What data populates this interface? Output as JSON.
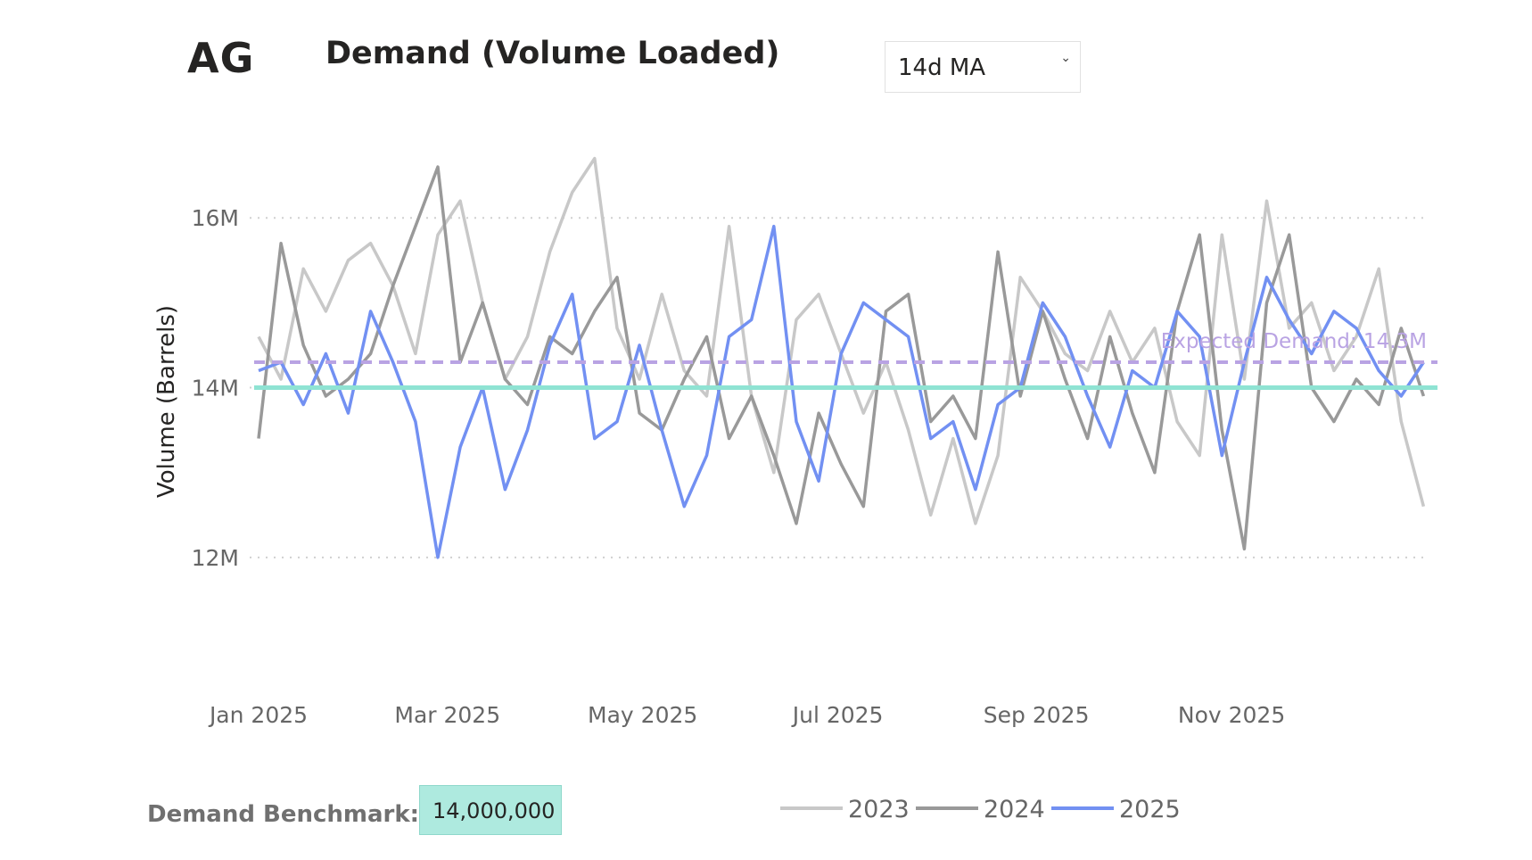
{
  "header": {
    "code": "AG",
    "title": "Demand (Volume Loaded)"
  },
  "dropdown": {
    "selected": "14d MA",
    "chevron_icon": "chevron-down-icon"
  },
  "benchmark": {
    "label": "Demand Benchmark:",
    "value": "14,000,000"
  },
  "chart_data": {
    "type": "line",
    "title": "Demand (Volume Loaded)",
    "ylabel": "Volume (Barrels)",
    "xlabel": "",
    "ylim": [
      11.0,
      17.2
    ],
    "yticks": [
      12,
      14,
      16
    ],
    "ytick_labels": [
      "12M",
      "14M",
      "16M"
    ],
    "xlim": [
      0,
      365
    ],
    "xticks": [
      0,
      59,
      120,
      181,
      243,
      304
    ],
    "xtick_labels": [
      "Jan 2025",
      "Mar 2025",
      "May 2025",
      "Jul 2025",
      "Sep 2025",
      "Nov 2025"
    ],
    "grid": "horizontal dotted",
    "legend_position": "bottom-center",
    "reference_lines": [
      {
        "name": "Expected Demand",
        "value": 14.3,
        "label": "Expected Demand: 14.3M",
        "style": "dashed",
        "color": "#b9a3e3"
      },
      {
        "name": "Demand Benchmark",
        "value": 14.0,
        "label": "",
        "style": "solid",
        "color": "#8fe3d3"
      }
    ],
    "x": [
      0,
      7,
      14,
      21,
      28,
      35,
      42,
      49,
      56,
      63,
      70,
      77,
      84,
      91,
      98,
      105,
      112,
      119,
      126,
      133,
      140,
      147,
      154,
      161,
      168,
      175,
      182,
      189,
      196,
      203,
      210,
      217,
      224,
      231,
      238,
      245,
      252,
      259,
      266,
      273,
      280,
      287,
      294,
      301,
      308,
      315,
      322,
      329,
      336,
      343,
      350,
      357,
      364
    ],
    "series": [
      {
        "name": "2023",
        "color": "#c8c8c8",
        "values": [
          14.6,
          14.1,
          15.4,
          14.9,
          15.5,
          15.7,
          15.2,
          14.4,
          15.8,
          16.2,
          15.0,
          14.1,
          14.6,
          15.6,
          16.3,
          16.7,
          14.7,
          14.1,
          15.1,
          14.2,
          13.9,
          15.9,
          13.9,
          13.0,
          14.8,
          15.1,
          14.4,
          13.7,
          14.3,
          13.5,
          12.5,
          13.4,
          12.4,
          13.2,
          15.3,
          14.9,
          14.4,
          14.2,
          14.9,
          14.3,
          14.7,
          13.6,
          13.2,
          15.8,
          14.1,
          16.2,
          14.7,
          15.0,
          14.2,
          14.6,
          15.4,
          13.6,
          12.6
        ]
      },
      {
        "name": "2024",
        "color": "#999999",
        "values": [
          13.4,
          15.7,
          14.5,
          13.9,
          14.1,
          14.4,
          15.2,
          15.9,
          16.6,
          14.3,
          15.0,
          14.1,
          13.8,
          14.6,
          14.4,
          14.9,
          15.3,
          13.7,
          13.5,
          14.1,
          14.6,
          13.4,
          13.9,
          13.2,
          12.4,
          13.7,
          13.1,
          12.6,
          14.9,
          15.1,
          13.6,
          13.9,
          13.4,
          15.6,
          13.9,
          14.9,
          14.1,
          13.4,
          14.6,
          13.7,
          13.0,
          14.9,
          15.8,
          13.5,
          12.1,
          15.0,
          15.8,
          14.0,
          13.6,
          14.1,
          13.8,
          14.7,
          13.9
        ]
      },
      {
        "name": "2025",
        "color": "#7290f2",
        "values": [
          14.2,
          14.3,
          13.8,
          14.4,
          13.7,
          14.9,
          14.3,
          13.6,
          12.0,
          13.3,
          14.0,
          12.8,
          13.5,
          14.5,
          15.1,
          13.4,
          13.6,
          14.5,
          13.5,
          12.6,
          13.2,
          14.6,
          14.8,
          15.9,
          13.6,
          12.9,
          14.4,
          15.0,
          14.8,
          14.6,
          13.4,
          13.6,
          12.8,
          13.8,
          14.0,
          15.0,
          14.6,
          13.9,
          13.3,
          14.2,
          14.0,
          14.9,
          14.6,
          13.2,
          14.3,
          15.3,
          14.8,
          14.4,
          14.9,
          14.7,
          14.2,
          13.9,
          14.3
        ]
      }
    ]
  }
}
